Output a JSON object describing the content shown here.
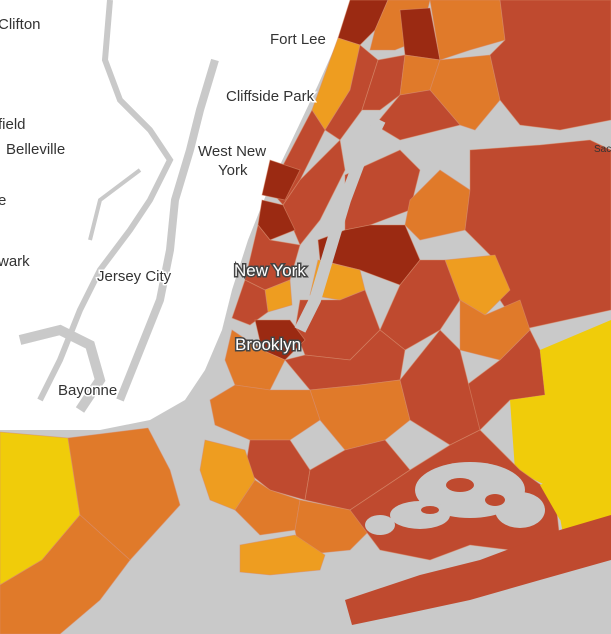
{
  "labels": {
    "clifton": "Clifton",
    "fort_lee": "Fort Lee",
    "cliffside_park": "Cliffside Park",
    "field": "field",
    "belleville": "Belleville",
    "west_new_york_1": "West New",
    "west_new_york_2": "York",
    "e": "e",
    "wark": "wark",
    "jersey_city": "Jersey City",
    "new_york": "New York",
    "brooklyn": "Brooklyn",
    "bayonne": "Bayonne",
    "sac": "Sac"
  }
}
